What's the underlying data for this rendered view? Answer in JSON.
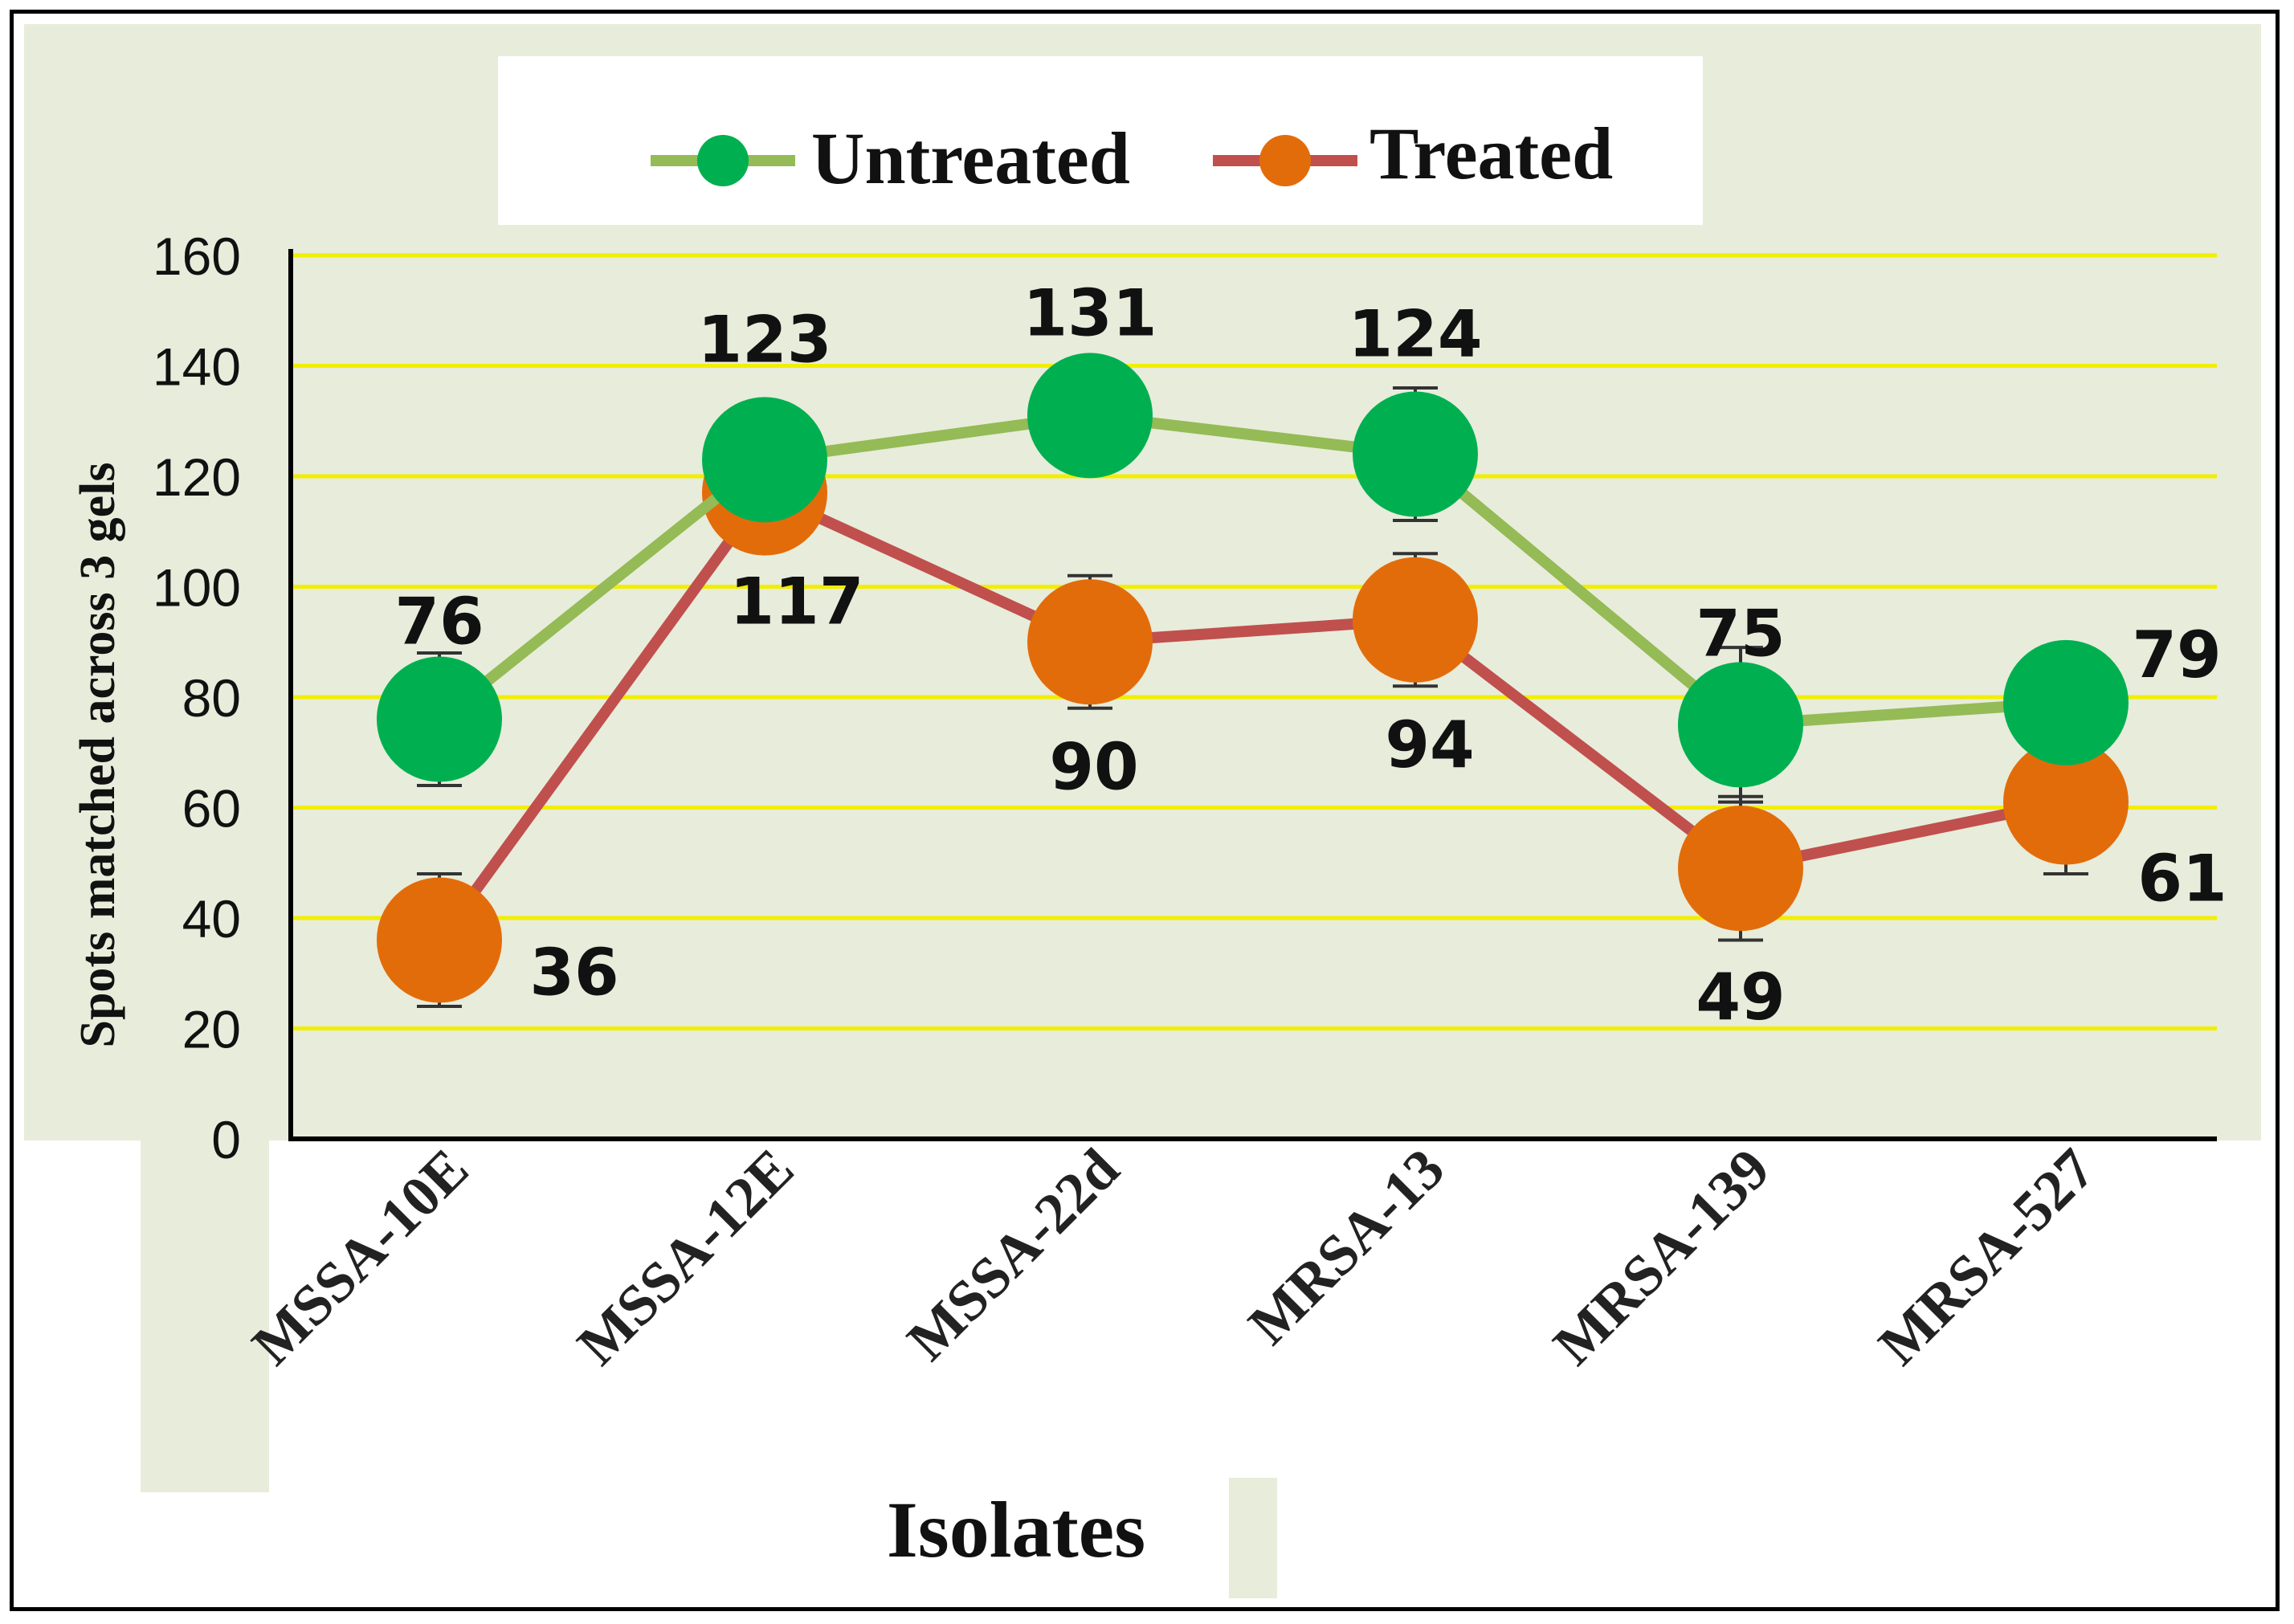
{
  "colors": {
    "plot_background": "#e8ecdb",
    "gridline": "#f2ee00",
    "untreated_line": "#94bb55",
    "untreated_marker": "#00b050",
    "treated_line": "#c0504d",
    "treated_marker": "#e36c0a"
  },
  "chart_data": {
    "type": "line",
    "title": "",
    "xlabel": "Isolates",
    "ylabel": "Spots matched  across 3 gels",
    "categories": [
      "MSSA-10E",
      "MSSA-12E",
      "MSSA-22d",
      "MRSA-13",
      "MRSA-139",
      "MRSA-527"
    ],
    "ylim": [
      0,
      160
    ],
    "yticks": [
      0,
      20,
      40,
      60,
      80,
      100,
      120,
      140,
      160
    ],
    "ytick_labels": [
      "0",
      "20",
      "40",
      "60",
      "80",
      "100",
      "120",
      "140",
      "160"
    ],
    "grid": true,
    "legend_position": "top-center",
    "series": [
      {
        "name": "Untreated",
        "values": [
          76,
          123,
          131,
          124,
          75,
          79
        ],
        "labels": [
          "76",
          "123",
          "131",
          "124",
          "75",
          "79"
        ],
        "error": [
          12,
          8,
          8,
          12,
          14,
          8
        ]
      },
      {
        "name": "Treated",
        "values": [
          36,
          117,
          90,
          94,
          49,
          61
        ],
        "labels": [
          "36",
          "117",
          "90",
          "94",
          "49",
          "61"
        ],
        "error": [
          12,
          8,
          12,
          12,
          13,
          13
        ]
      }
    ]
  }
}
